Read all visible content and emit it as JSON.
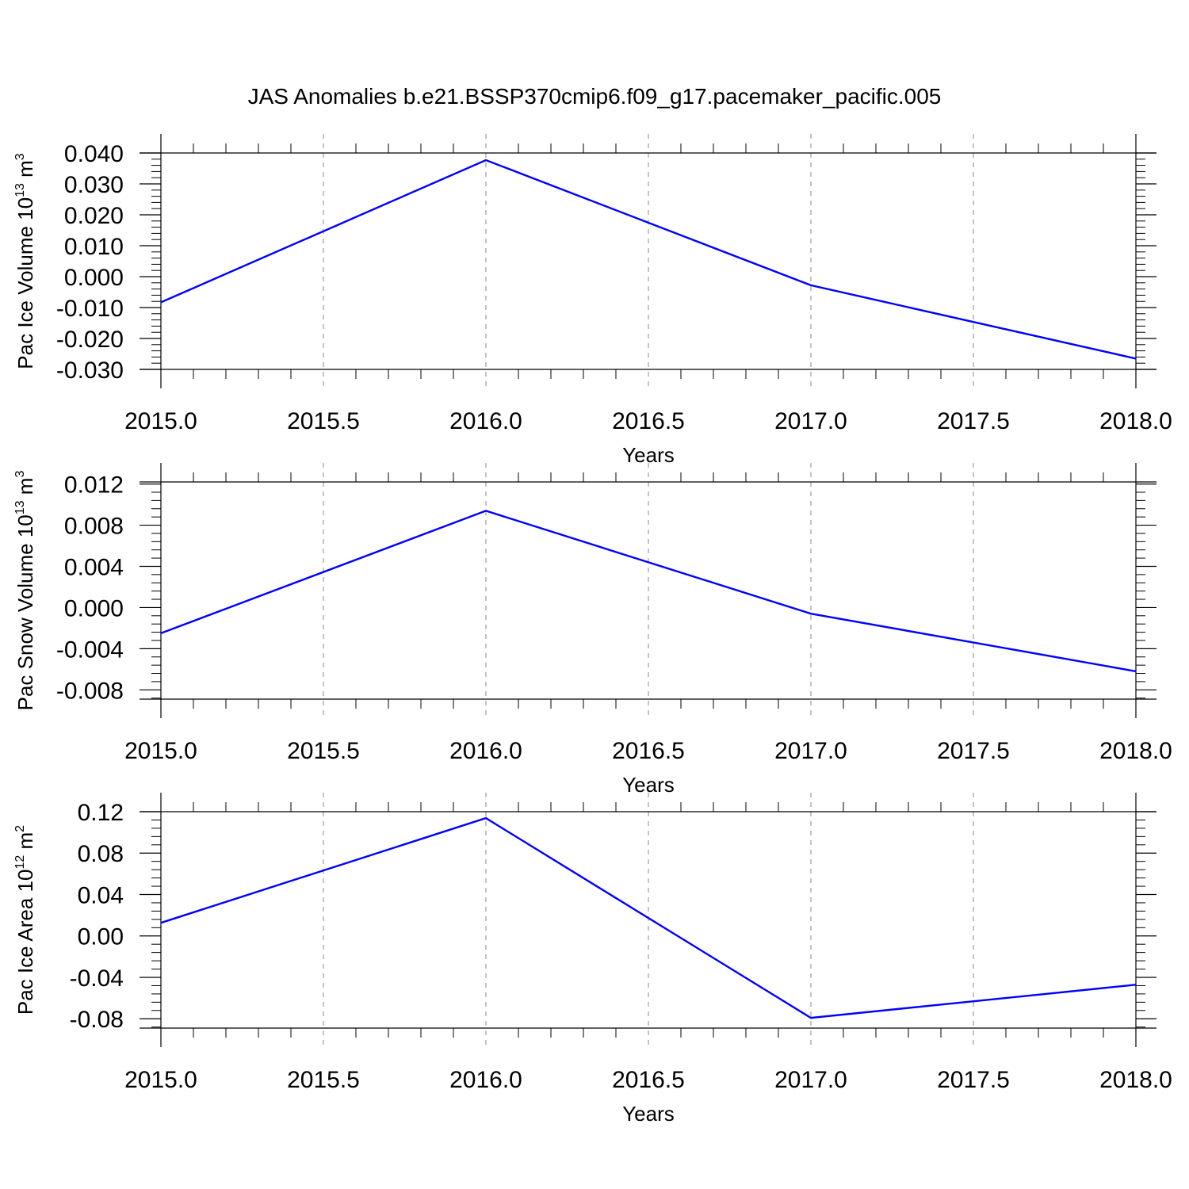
{
  "title": "JAS Anomalies b.e21.BSSP370cmip6.f09_g17.pacemaker_pacific.005",
  "colors": {
    "line": "#0000ff",
    "axis": "#000000",
    "grid": "#888888"
  },
  "chart_data": [
    {
      "type": "line",
      "ylabel": "Pac Ice Volume",
      "ylabel_unit": "10",
      "ylabel_exp": "13",
      "ylabel_unit_tail": " m",
      "ylabel_unit_exp": "3",
      "xlabel": "Years",
      "xlim": [
        2015.0,
        2018.0
      ],
      "ylim": [
        -0.03,
        0.04
      ],
      "x_ticks": [
        "2015.0",
        "2015.5",
        "2016.0",
        "2016.5",
        "2017.0",
        "2017.5",
        "2018.0"
      ],
      "y_ticks": [
        "0.040",
        "0.030",
        "0.020",
        "0.010",
        "0.000",
        "-0.010",
        "-0.020",
        "-0.030"
      ],
      "grid": "vertical dashed at major x ticks",
      "series": [
        {
          "x": [
            2015,
            2016,
            2017,
            2018
          ],
          "values": [
            -0.0083,
            0.0377,
            -0.0028,
            -0.0265
          ]
        }
      ]
    },
    {
      "type": "line",
      "ylabel": "Pac Snow Volume",
      "ylabel_unit": "10",
      "ylabel_exp": "13",
      "ylabel_unit_tail": " m",
      "ylabel_unit_exp": "3",
      "xlabel": "Years",
      "xlim": [
        2015.0,
        2018.0
      ],
      "ylim": [
        -0.0089,
        0.0122
      ],
      "x_ticks": [
        "2015.0",
        "2015.5",
        "2016.0",
        "2016.5",
        "2017.0",
        "2017.5",
        "2018.0"
      ],
      "y_ticks": [
        "0.012",
        "0.008",
        "0.004",
        "0.000",
        "-0.004",
        "-0.008"
      ],
      "grid": "vertical dashed at major x ticks",
      "series": [
        {
          "x": [
            2015,
            2016,
            2017,
            2018
          ],
          "values": [
            -0.0025,
            0.0094,
            -0.0006,
            -0.0062
          ]
        }
      ]
    },
    {
      "type": "line",
      "ylabel": "Pac Ice Area",
      "ylabel_unit": "10",
      "ylabel_exp": "12",
      "ylabel_unit_tail": " m",
      "ylabel_unit_exp": "2",
      "xlabel": "Years",
      "xlim": [
        2015.0,
        2018.0
      ],
      "ylim": [
        -0.089,
        0.12
      ],
      "x_ticks": [
        "2015.0",
        "2015.5",
        "2016.0",
        "2016.5",
        "2017.0",
        "2017.5",
        "2018.0"
      ],
      "y_ticks": [
        "0.12",
        "0.08",
        "0.04",
        "0.00",
        "-0.04",
        "-0.08"
      ],
      "grid": "vertical dashed at major x ticks",
      "series": [
        {
          "x": [
            2015,
            2016,
            2017,
            2018
          ],
          "values": [
            0.0127,
            0.1138,
            -0.0791,
            -0.0471
          ]
        }
      ]
    }
  ]
}
